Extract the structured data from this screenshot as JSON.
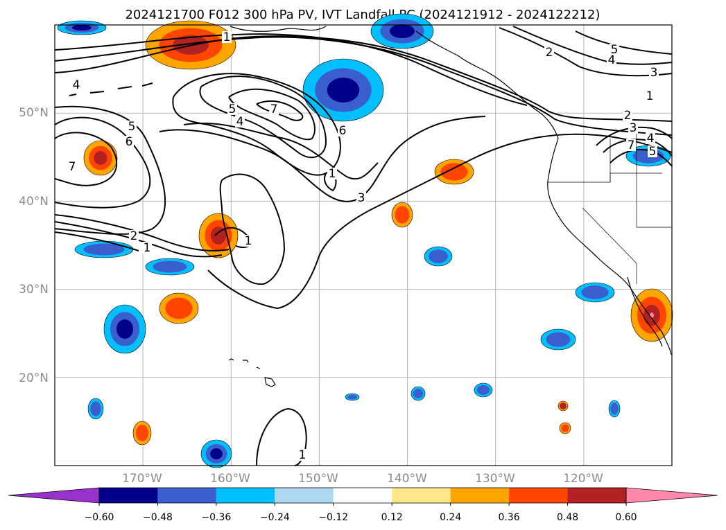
{
  "title": "2024121700 F012 300 hPa PV, IVT Landfall PC (2024121912 - 2024122212)",
  "map": {
    "lon_range": [
      -180,
      -110
    ],
    "lat_range": [
      10,
      60
    ],
    "lat_labels": [
      "50°N",
      "40°N",
      "30°N",
      "20°N"
    ],
    "lon_labels": [
      "170°W",
      "160°W",
      "150°W",
      "140°W",
      "130°W",
      "120°W"
    ],
    "gridlines": true,
    "contour_labels": [
      "4",
      "5",
      "6",
      "7",
      "1",
      "2",
      "5",
      "4",
      "7",
      "6",
      "1",
      "3",
      "1",
      "1",
      "2",
      "5",
      "4",
      "3",
      "1",
      "2",
      "3",
      "4",
      "5",
      "7",
      "1"
    ],
    "fill_colors": {
      "neg_strong": "#00008b",
      "neg_mid": "#3a5fcd",
      "neg_light": "#00bfff",
      "pos_light": "#ffa500",
      "pos_mid": "#ff4500",
      "pos_strong": "#b22222",
      "pos_max": "#ff88aa"
    }
  },
  "colorbar": {
    "ticks": [
      "−0.60",
      "−0.48",
      "−0.36",
      "−0.24",
      "−0.12",
      "0.12",
      "0.24",
      "0.36",
      "0.48",
      "0.60"
    ],
    "colors": [
      "#9932cc",
      "#00008b",
      "#3a5fcd",
      "#00bfff",
      "#add8f0",
      "#ffffff",
      "#ffe88a",
      "#ffa500",
      "#ff4500",
      "#b22222",
      "#ff88aa",
      "#ff88aa"
    ],
    "extend": "both"
  }
}
